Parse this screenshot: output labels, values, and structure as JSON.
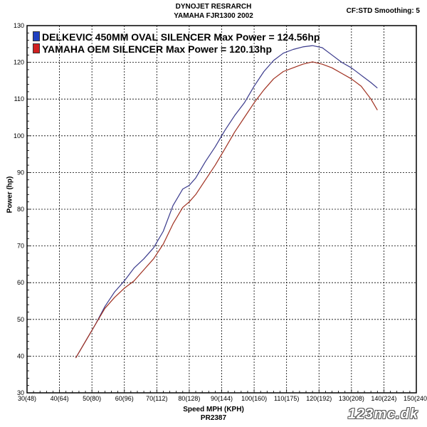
{
  "header": {
    "title_line1": "DYNOJET RESRARCH",
    "title_line2": "YAMAHA FJR1300 2002",
    "settings": "CF:STD Smoothing: 5"
  },
  "footer": {
    "run_id": "PR2387",
    "watermark": "123mc.dk"
  },
  "colors": {
    "series1": "#3a3a8c",
    "series2": "#a03020",
    "swatch1": "#2040c0",
    "swatch2": "#d02020",
    "grid": "#000000"
  },
  "chart_data": {
    "type": "line",
    "title": "DYNOJET RESRARCH YAMAHA FJR1300 2002",
    "xlabel": "Speed MPH (KPH)",
    "ylabel": "Power (hp)",
    "xlim": [
      30,
      150
    ],
    "ylim": [
      30,
      130
    ],
    "grid": true,
    "legend_position": "top-left",
    "x_ticks": [
      "30(48)",
      "40(64)",
      "50(80)",
      "60(96)",
      "70(112)",
      "80(128)",
      "90(144)",
      "100(160)",
      "110(175)",
      "120(192)",
      "130(208)",
      "140(224)",
      "150(240)"
    ],
    "y_ticks": [
      "30",
      "40",
      "50",
      "60",
      "70",
      "80",
      "90",
      "100",
      "110",
      "120",
      "130"
    ],
    "series": [
      {
        "name": "DELKEVIC 450MM OVAL SILENCER Max Power = 124.56hp",
        "x": [
          45,
          48,
          51,
          54,
          57,
          60,
          63,
          66,
          69,
          72,
          75,
          78,
          80,
          82,
          85,
          88,
          91,
          94,
          97,
          100,
          103,
          106,
          109,
          112,
          115,
          118,
          121,
          124,
          127,
          130,
          133,
          136,
          138
        ],
        "y": [
          39.5,
          44,
          48.5,
          53.5,
          57.5,
          60.5,
          64,
          66.5,
          69.5,
          74,
          81,
          85.5,
          86.5,
          88.5,
          93,
          97,
          101.5,
          105.5,
          109,
          113.5,
          117.5,
          120.5,
          122.5,
          123.5,
          124.2,
          124.56,
          124,
          122,
          120,
          118.5,
          116.5,
          114.5,
          113
        ]
      },
      {
        "name": "YAMAHA OEM SILENCER Max Power = 120.13hp",
        "x": [
          45,
          48,
          51,
          54,
          57,
          60,
          63,
          66,
          69,
          72,
          75,
          78,
          80,
          82,
          85,
          88,
          91,
          94,
          97,
          100,
          103,
          106,
          109,
          112,
          115,
          118,
          121,
          124,
          127,
          130,
          133,
          136,
          138
        ],
        "y": [
          39.5,
          44,
          48.5,
          53,
          56,
          58.5,
          60.5,
          63.5,
          66.5,
          70.5,
          76,
          80.5,
          82,
          84,
          88,
          92,
          96.5,
          101,
          105,
          109,
          112.5,
          115.5,
          117.5,
          118.5,
          119.5,
          120.13,
          119.5,
          118.5,
          117,
          115.5,
          113.5,
          110,
          107
        ]
      }
    ]
  }
}
